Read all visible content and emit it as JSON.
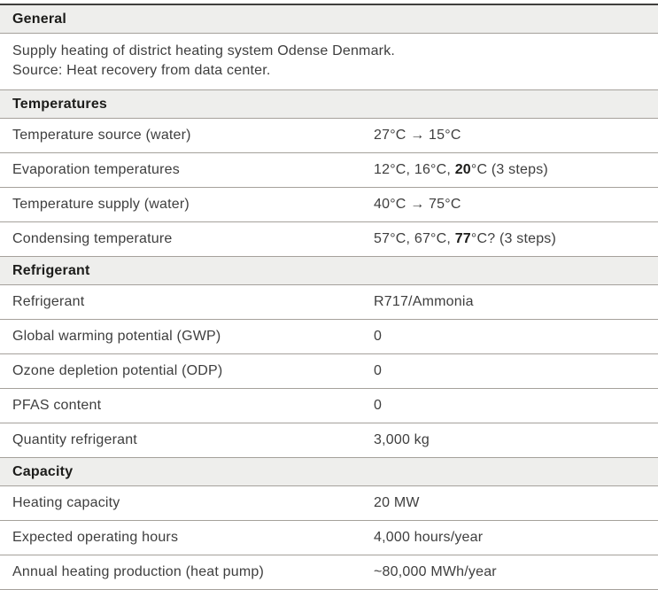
{
  "colors": {
    "background": "#ffffff",
    "top_border": "#403f3d",
    "row_line": "#a5a19b",
    "section_header_bg": "#eeeeec",
    "body_text": "#3e3e3e",
    "header_text": "#1c1c1a"
  },
  "table": {
    "sections": [
      {
        "title": "General",
        "lines": [
          "Supply heating of district heating system Odense Denmark.",
          "Source: Heat recovery from data center."
        ]
      },
      {
        "title": "Temperatures",
        "rows": [
          {
            "label": "Temperature source (water)",
            "value": [
              {
                "text": "27°C → 15°C",
                "bold": false
              }
            ]
          },
          {
            "label": "Evaporation temperatures",
            "value": [
              {
                "text": "12°C, 16°C, ",
                "bold": false
              },
              {
                "text": "20",
                "bold": true
              },
              {
                "text": "°C (3 steps)",
                "bold": false
              }
            ]
          },
          {
            "label": "Temperature supply (water)",
            "value": [
              {
                "text": "40°C → 75°C",
                "bold": false
              }
            ]
          },
          {
            "label": "Condensing temperature",
            "value": [
              {
                "text": "57°C, 67°C, ",
                "bold": false
              },
              {
                "text": "77",
                "bold": true
              },
              {
                "text": "°C? (3 steps)",
                "bold": false
              }
            ]
          }
        ]
      },
      {
        "title": "Refrigerant",
        "rows": [
          {
            "label": "Refrigerant",
            "value": [
              {
                "text": "R717/Ammonia",
                "bold": false
              }
            ]
          },
          {
            "label": "Global warming potential (GWP)",
            "value": [
              {
                "text": "0",
                "bold": false
              }
            ]
          },
          {
            "label": "Ozone depletion potential (ODP)",
            "value": [
              {
                "text": "0",
                "bold": false
              }
            ]
          },
          {
            "label": "PFAS content",
            "value": [
              {
                "text": "0",
                "bold": false
              }
            ]
          },
          {
            "label": "Quantity refrigerant",
            "value": [
              {
                "text": "3,000 kg",
                "bold": false
              }
            ]
          }
        ]
      },
      {
        "title": "Capacity",
        "rows": [
          {
            "label": "Heating capacity",
            "value": [
              {
                "text": "20 MW",
                "bold": false
              }
            ]
          },
          {
            "label": "Expected operating hours",
            "value": [
              {
                "text": "4,000 hours/year",
                "bold": false
              }
            ]
          },
          {
            "label": "Annual heating production (heat pump)",
            "value": [
              {
                "text": "~80,000 MWh/year",
                "bold": false
              }
            ]
          }
        ]
      }
    ]
  }
}
